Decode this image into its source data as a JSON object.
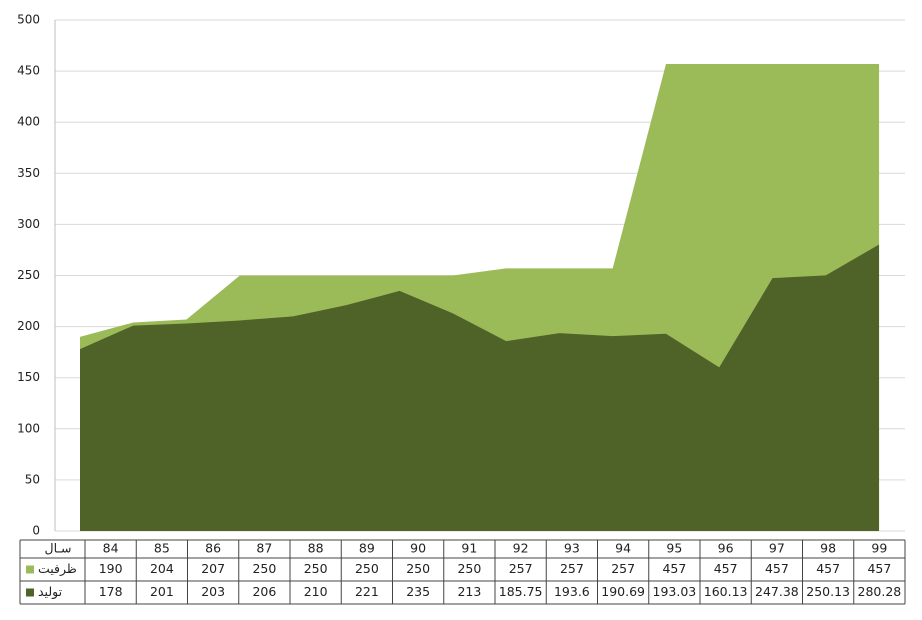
{
  "chart_data": {
    "type": "area",
    "xlabel": "سـال",
    "categories": [
      "84",
      "85",
      "86",
      "87",
      "88",
      "89",
      "90",
      "91",
      "92",
      "93",
      "94",
      "95",
      "96",
      "97",
      "98",
      "99"
    ],
    "series": [
      {
        "name": "ظرفیت",
        "color": "#9bbb59",
        "values": [
          190,
          204,
          207,
          250,
          250,
          250,
          250,
          250,
          257,
          257,
          257,
          457,
          457,
          457,
          457,
          457
        ]
      },
      {
        "name": "تولید",
        "color": "#4f6228",
        "values": [
          178,
          201,
          203,
          206,
          210,
          221,
          235,
          213,
          185.75,
          193.6,
          190.69,
          193.03,
          160.13,
          247.38,
          250.13,
          280.28
        ]
      }
    ],
    "ylim": [
      0,
      500
    ],
    "yticks": [
      0,
      50,
      100,
      150,
      200,
      250,
      300,
      350,
      400,
      450,
      500
    ],
    "grid": true
  }
}
